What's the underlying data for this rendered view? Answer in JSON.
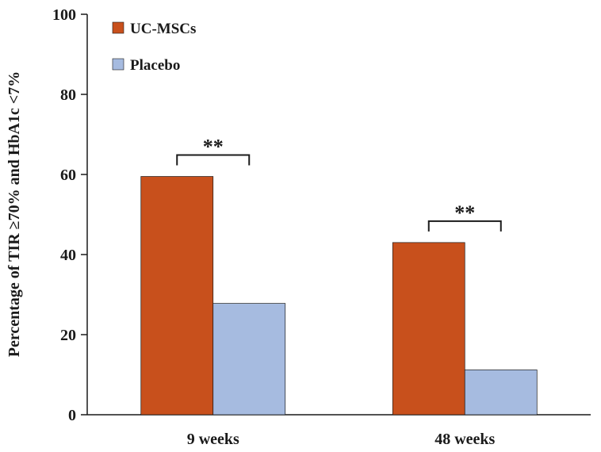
{
  "chart_data": {
    "type": "bar",
    "title": "",
    "xlabel": "",
    "ylabel": "Percentage of TIR ≥70% and HbA1c <7%",
    "ylim": [
      0,
      100
    ],
    "yticks": [
      "0",
      "20",
      "40",
      "60",
      "80",
      "100"
    ],
    "categories": [
      "9 weeks",
      "48 weeks"
    ],
    "series": [
      {
        "name": "UC-MSCs",
        "color": "#C8501C",
        "values": [
          59.5,
          43
        ]
      },
      {
        "name": "Placebo",
        "color": "#A6BBE0",
        "values": [
          27.8,
          11.2
        ]
      }
    ],
    "legend_position": "top-left",
    "grid": false,
    "annotations": [
      {
        "category": "9 weeks",
        "text": "**"
      },
      {
        "category": "48 weeks",
        "text": "**"
      }
    ]
  }
}
